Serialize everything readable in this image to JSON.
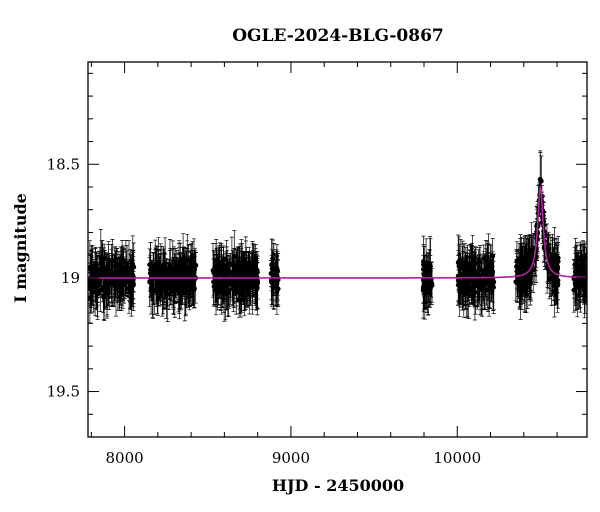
{
  "chart_data": {
    "type": "scatter",
    "title": "OGLE-2024-BLG-0867",
    "xlabel": "HJD - 2450000",
    "ylabel": "I magnitude",
    "xlim": [
      7780,
      10780
    ],
    "ylim": [
      19.7,
      18.05
    ],
    "y_inverted": true,
    "x_ticks": [
      8000,
      9000,
      10000
    ],
    "y_ticks": [
      18.5,
      19,
      19.5
    ],
    "x_tick_labels": [
      "8000",
      "9000",
      "10000"
    ],
    "y_tick_labels": [
      "18.5",
      "19",
      "19.5"
    ],
    "grid": false,
    "legend": "none",
    "colors": {
      "points": "#000000",
      "model": "#b0209f"
    },
    "observing_seasons": [
      {
        "start": 7790,
        "end": 8060,
        "n": 190,
        "mean_mag": 19.0
      },
      {
        "start": 8150,
        "end": 8430,
        "n": 190,
        "mean_mag": 19.0
      },
      {
        "start": 8530,
        "end": 8800,
        "n": 200,
        "mean_mag": 19.0
      },
      {
        "start": 8880,
        "end": 8925,
        "n": 35,
        "mean_mag": 19.0
      },
      {
        "start": 9795,
        "end": 9850,
        "n": 55,
        "mean_mag": 19.0
      },
      {
        "start": 10005,
        "end": 10220,
        "n": 160,
        "mean_mag": 19.0
      },
      {
        "start": 10350,
        "end": 10610,
        "n": 170,
        "mean_mag": 19.0
      },
      {
        "start": 10700,
        "end": 10780,
        "n": 60,
        "mean_mag": 19.0
      }
    ],
    "typical_error_mag": 0.09,
    "model": {
      "baseline_mag": 19.0,
      "peak_mag": 18.6,
      "peak_time": 10500,
      "timescale_days": 20,
      "x_start": 7780,
      "x_end": 10780
    }
  }
}
